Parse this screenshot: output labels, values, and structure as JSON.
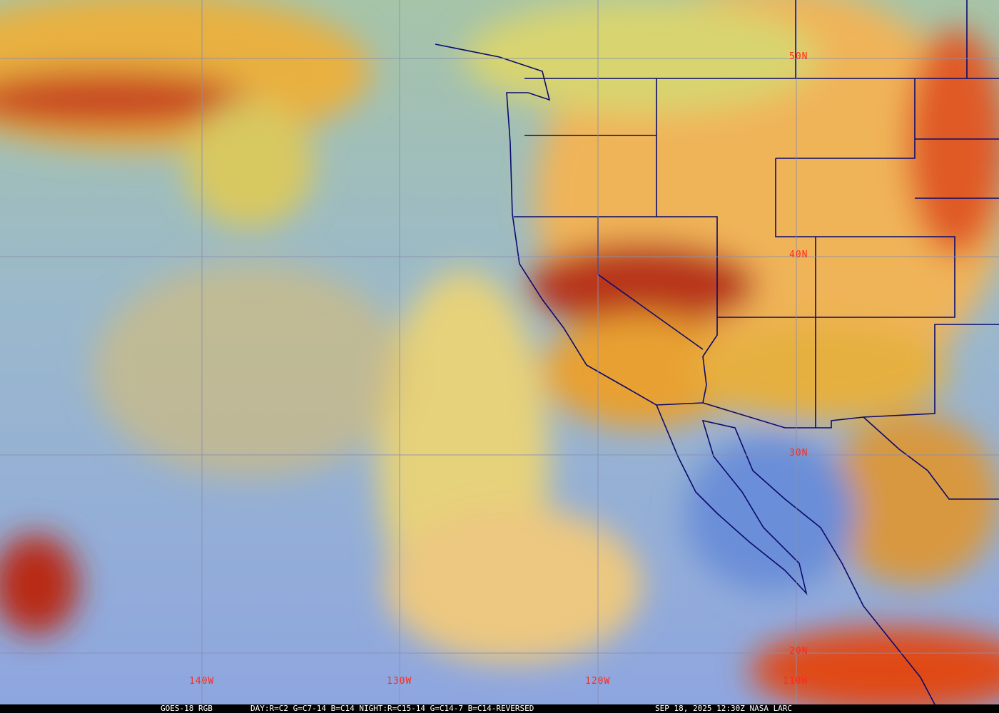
{
  "map": {
    "lat_labels": [
      "50N",
      "40N",
      "30N",
      "20N"
    ],
    "lon_labels": [
      "140W",
      "130W",
      "120W",
      "110W"
    ],
    "colors": {
      "grid": "#8a8fb0",
      "borders": "#0a0a6e",
      "labels": "#ff2a1a",
      "ocean": "#8fa8d8",
      "land": "#f0b050",
      "cloud_high": "#c83018"
    }
  },
  "caption": {
    "product": "GOES-18 RGB",
    "recipe": "DAY:R=C2 G=C7-14 B=C14 NIGHT:R=C15-14 G=C14-7 B=C14-REVERSED",
    "timestamp": "SEP 18, 2025 12:30Z NASA LARC"
  }
}
